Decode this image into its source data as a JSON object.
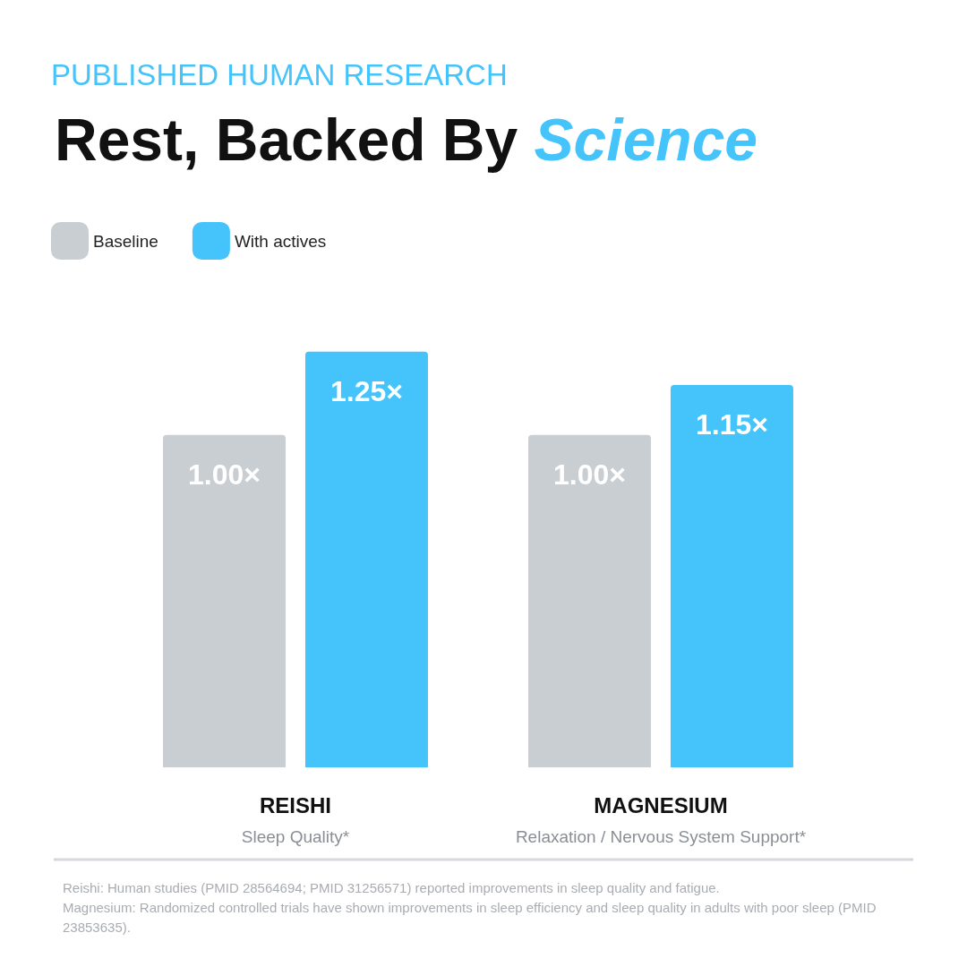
{
  "chart_data": {
    "type": "bar",
    "subtitle": "PUBLISHED HUMAN RESEARCH",
    "title": "Rest, Backed By Science",
    "categories": [
      "REISHI\nSleep Quality*",
      "MAGNESIUM\nRelaxation / Nervous System Support*"
    ],
    "series": [
      {
        "name": "Baseline",
        "color": "#c9ced3",
        "values": [
          1.0,
          1.0
        ],
        "value_labels": [
          "1.00×",
          "1.00×"
        ]
      },
      {
        "name": "With actives",
        "color": "#45c4fb",
        "values": [
          1.25,
          1.15
        ],
        "value_labels": [
          "1.25×",
          "1.15×"
        ]
      }
    ],
    "legend": "top left",
    "grid": false,
    "annotations": [
      "Reishi: Human studies (PMID 28564694; PMID 31256571) reported improvements in sleep quality and fatigue.",
      "Magnesium: Randomized controlled trials have shown improvements in sleep efficiency and sleep quality in adults with poor sleep (PMID 23853635)."
    ]
  }
}
